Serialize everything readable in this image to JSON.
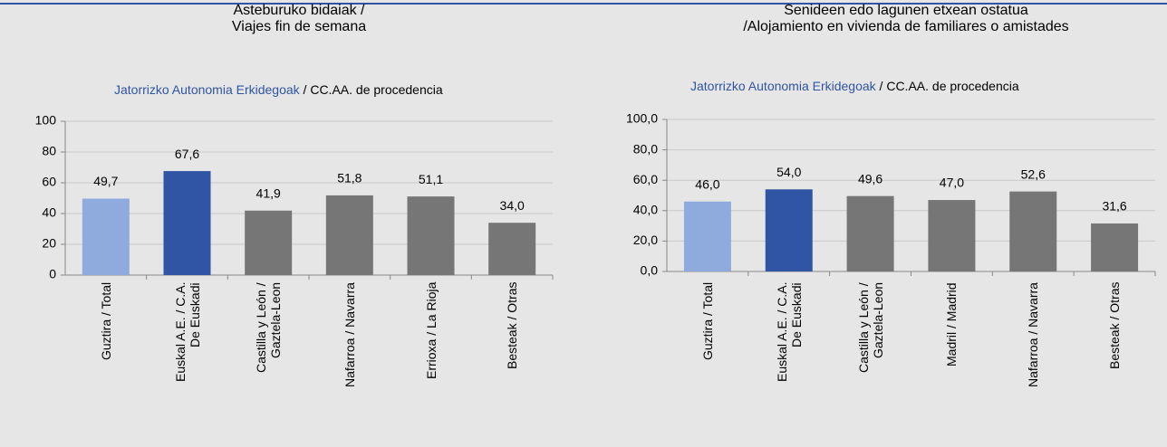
{
  "chart_data": [
    {
      "type": "bar",
      "title": [
        "Asteburuko bidaiak /",
        "Viajes fin de semana"
      ],
      "subtitle": [
        "Jatorrizko Autonomia  Erkidegoak",
        " /  CC.AA. de procedencia"
      ],
      "categories": [
        "Guztira / Total",
        "Euskal A.E. / C.A.\nDe Euskadi",
        "Castilla y León /\nGaztela-Leon",
        "Nafarroa / Navarra",
        "Errioxa / La Rioja",
        "Besteak / Otras"
      ],
      "values": [
        49.7,
        67.6,
        41.9,
        51.8,
        51.1,
        34.0
      ],
      "value_labels": [
        "49,7",
        "67,6",
        "41,9",
        "51,8",
        "51,1",
        "34,0"
      ],
      "colors": [
        "#8faadc",
        "#2f55a4",
        "#767676",
        "#767676",
        "#767676",
        "#767676"
      ],
      "ylim": [
        0,
        100
      ],
      "yticks": [
        0,
        20,
        40,
        60,
        80,
        100
      ],
      "grid": true
    },
    {
      "type": "bar",
      "title": [
        "Senideen edo lagunen etxean ostatua",
        "/Alojamiento en vivienda de familiares o amistades"
      ],
      "subtitle": [
        "Jatorrizko Autonomia  Erkidegoak",
        " /  CC.AA. de procedencia"
      ],
      "categories": [
        "Guztira / Total",
        "Euskal A.E. / C.A.\nDe Euskadi",
        "Castilla y León /\nGaztela-Leon",
        "Madril / Madrid",
        "Nafarroa / Navarra",
        "Besteak / Otras"
      ],
      "values": [
        46.0,
        54.0,
        49.6,
        47.0,
        52.6,
        31.6
      ],
      "value_labels": [
        "46,0",
        "54,0",
        "49,6",
        "47,0",
        "52,6",
        "31,6"
      ],
      "colors": [
        "#8faadc",
        "#2f55a4",
        "#767676",
        "#767676",
        "#767676",
        "#767676"
      ],
      "ylim": [
        0,
        100
      ],
      "yticks": [
        {
          "value": 0,
          "label": "0,0"
        },
        {
          "value": 20,
          "label": "20,0"
        },
        {
          "value": 40,
          "label": "40,0"
        },
        {
          "value": 60,
          "label": "60,0"
        },
        {
          "value": 80,
          "label": "80,0"
        },
        {
          "value": 100,
          "label": "100,0"
        }
      ],
      "grid": true
    }
  ]
}
